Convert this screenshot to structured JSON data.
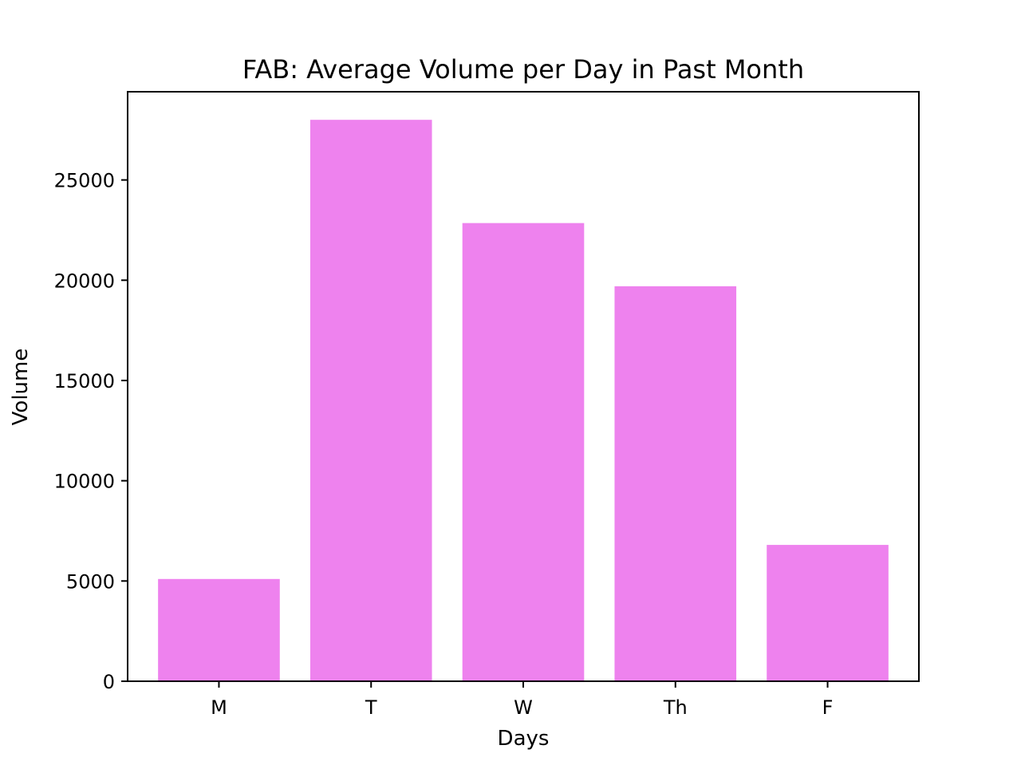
{
  "chart_data": {
    "type": "bar",
    "title": "FAB: Average Volume per Day in Past Month",
    "xlabel": "Days",
    "ylabel": "Volume",
    "categories": [
      "M",
      "T",
      "W",
      "Th",
      "F"
    ],
    "values": [
      5100,
      28000,
      22850,
      19700,
      6800
    ],
    "ylim": [
      0,
      29400
    ],
    "yticks": [
      0,
      5000,
      10000,
      15000,
      20000,
      25000
    ],
    "ytick_labels": [
      "0",
      "5000",
      "10000",
      "15000",
      "20000",
      "25000"
    ],
    "bar_color": "#ee82ee",
    "grid": false,
    "legend": null
  }
}
